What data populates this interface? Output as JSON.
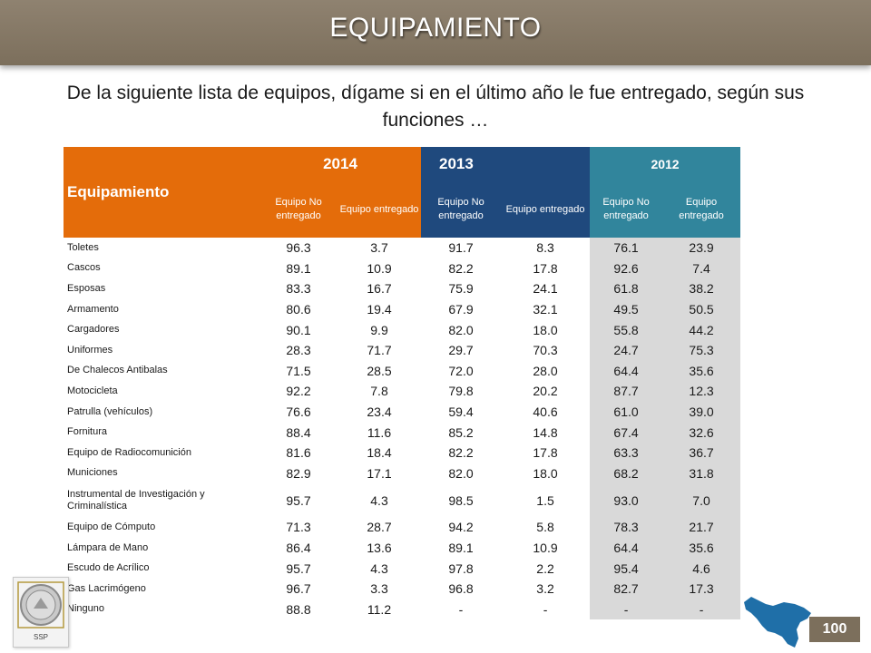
{
  "header": {
    "title": "EQUIPAMIENTO"
  },
  "question": "De la siguiente lista de equipos, dígame si en el último año le fue entregado, según sus funciones …",
  "table": {
    "row_header": "Equipamiento",
    "years": [
      "2014",
      "2013",
      "2012"
    ],
    "sub_headers": [
      "Equipo No entregado",
      "Equipo entregado",
      "Equipo No entregado",
      "Equipo entregado",
      "Equipo No entregado",
      "Equipo entregado"
    ],
    "rows": [
      {
        "name": "Toletes",
        "values": [
          "96.3",
          "3.7",
          "91.7",
          "8.3",
          "76.1",
          "23.9"
        ]
      },
      {
        "name": "Cascos",
        "values": [
          "89.1",
          "10.9",
          "82.2",
          "17.8",
          "92.6",
          "7.4"
        ]
      },
      {
        "name": "Esposas",
        "values": [
          "83.3",
          "16.7",
          "75.9",
          "24.1",
          "61.8",
          "38.2"
        ]
      },
      {
        "name": "Armamento",
        "values": [
          "80.6",
          "19.4",
          "67.9",
          "32.1",
          "49.5",
          "50.5"
        ]
      },
      {
        "name": "Cargadores",
        "values": [
          "90.1",
          "9.9",
          "82.0",
          "18.0",
          "55.8",
          "44.2"
        ]
      },
      {
        "name": "Uniformes",
        "values": [
          "28.3",
          "71.7",
          "29.7",
          "70.3",
          "24.7",
          "75.3"
        ]
      },
      {
        "name": "De Chalecos Antibalas",
        "values": [
          "71.5",
          "28.5",
          "72.0",
          "28.0",
          "64.4",
          "35.6"
        ]
      },
      {
        "name": "Motocicleta",
        "values": [
          "92.2",
          "7.8",
          "79.8",
          "20.2",
          "87.7",
          "12.3"
        ]
      },
      {
        "name": "Patrulla (vehículos)",
        "values": [
          "76.6",
          "23.4",
          "59.4",
          "40.6",
          "61.0",
          "39.0"
        ]
      },
      {
        "name": "Fornitura",
        "values": [
          "88.4",
          "11.6",
          "85.2",
          "14.8",
          "67.4",
          "32.6"
        ]
      },
      {
        "name": "Equipo de Radiocomunición",
        "values": [
          "81.6",
          "18.4",
          "82.2",
          "17.8",
          "63.3",
          "36.7"
        ]
      },
      {
        "name": "Municiones",
        "values": [
          "82.9",
          "17.1",
          "82.0",
          "18.0",
          "68.2",
          "31.8"
        ]
      },
      {
        "name": "Instrumental de Investigación y Criminalística",
        "values": [
          "95.7",
          "4.3",
          "98.5",
          "1.5",
          "93.0",
          "7.0"
        ]
      },
      {
        "name": "Equipo de Cómputo",
        "values": [
          "71.3",
          "28.7",
          "94.2",
          "5.8",
          "78.3",
          "21.7"
        ]
      },
      {
        "name": "Lámpara de Mano",
        "values": [
          "86.4",
          "13.6",
          "89.1",
          "10.9",
          "64.4",
          "35.6"
        ]
      },
      {
        "name": "Escudo de Acrílico",
        "values": [
          "95.7",
          "4.3",
          "97.8",
          "2.2",
          "95.4",
          "4.6"
        ]
      },
      {
        "name": "Gas Lacrimógeno",
        "values": [
          "96.7",
          "3.3",
          "96.8",
          "3.2",
          "82.7",
          "17.3"
        ]
      },
      {
        "name": "Ninguno",
        "values": [
          "88.8",
          "11.2",
          "-",
          "-",
          "-",
          "-"
        ]
      }
    ]
  },
  "logo": {
    "text": "SSP",
    "icon": "seal-icon"
  },
  "map": {
    "icon": "state-map-icon"
  },
  "page_number": "100",
  "colors": {
    "header": "#7c6f5c",
    "y2014": "#e46c0a",
    "y2013": "#1f497d",
    "y2012": "#31859c",
    "shade2012": "#d9d9d9",
    "map": "#1f6fa8"
  }
}
